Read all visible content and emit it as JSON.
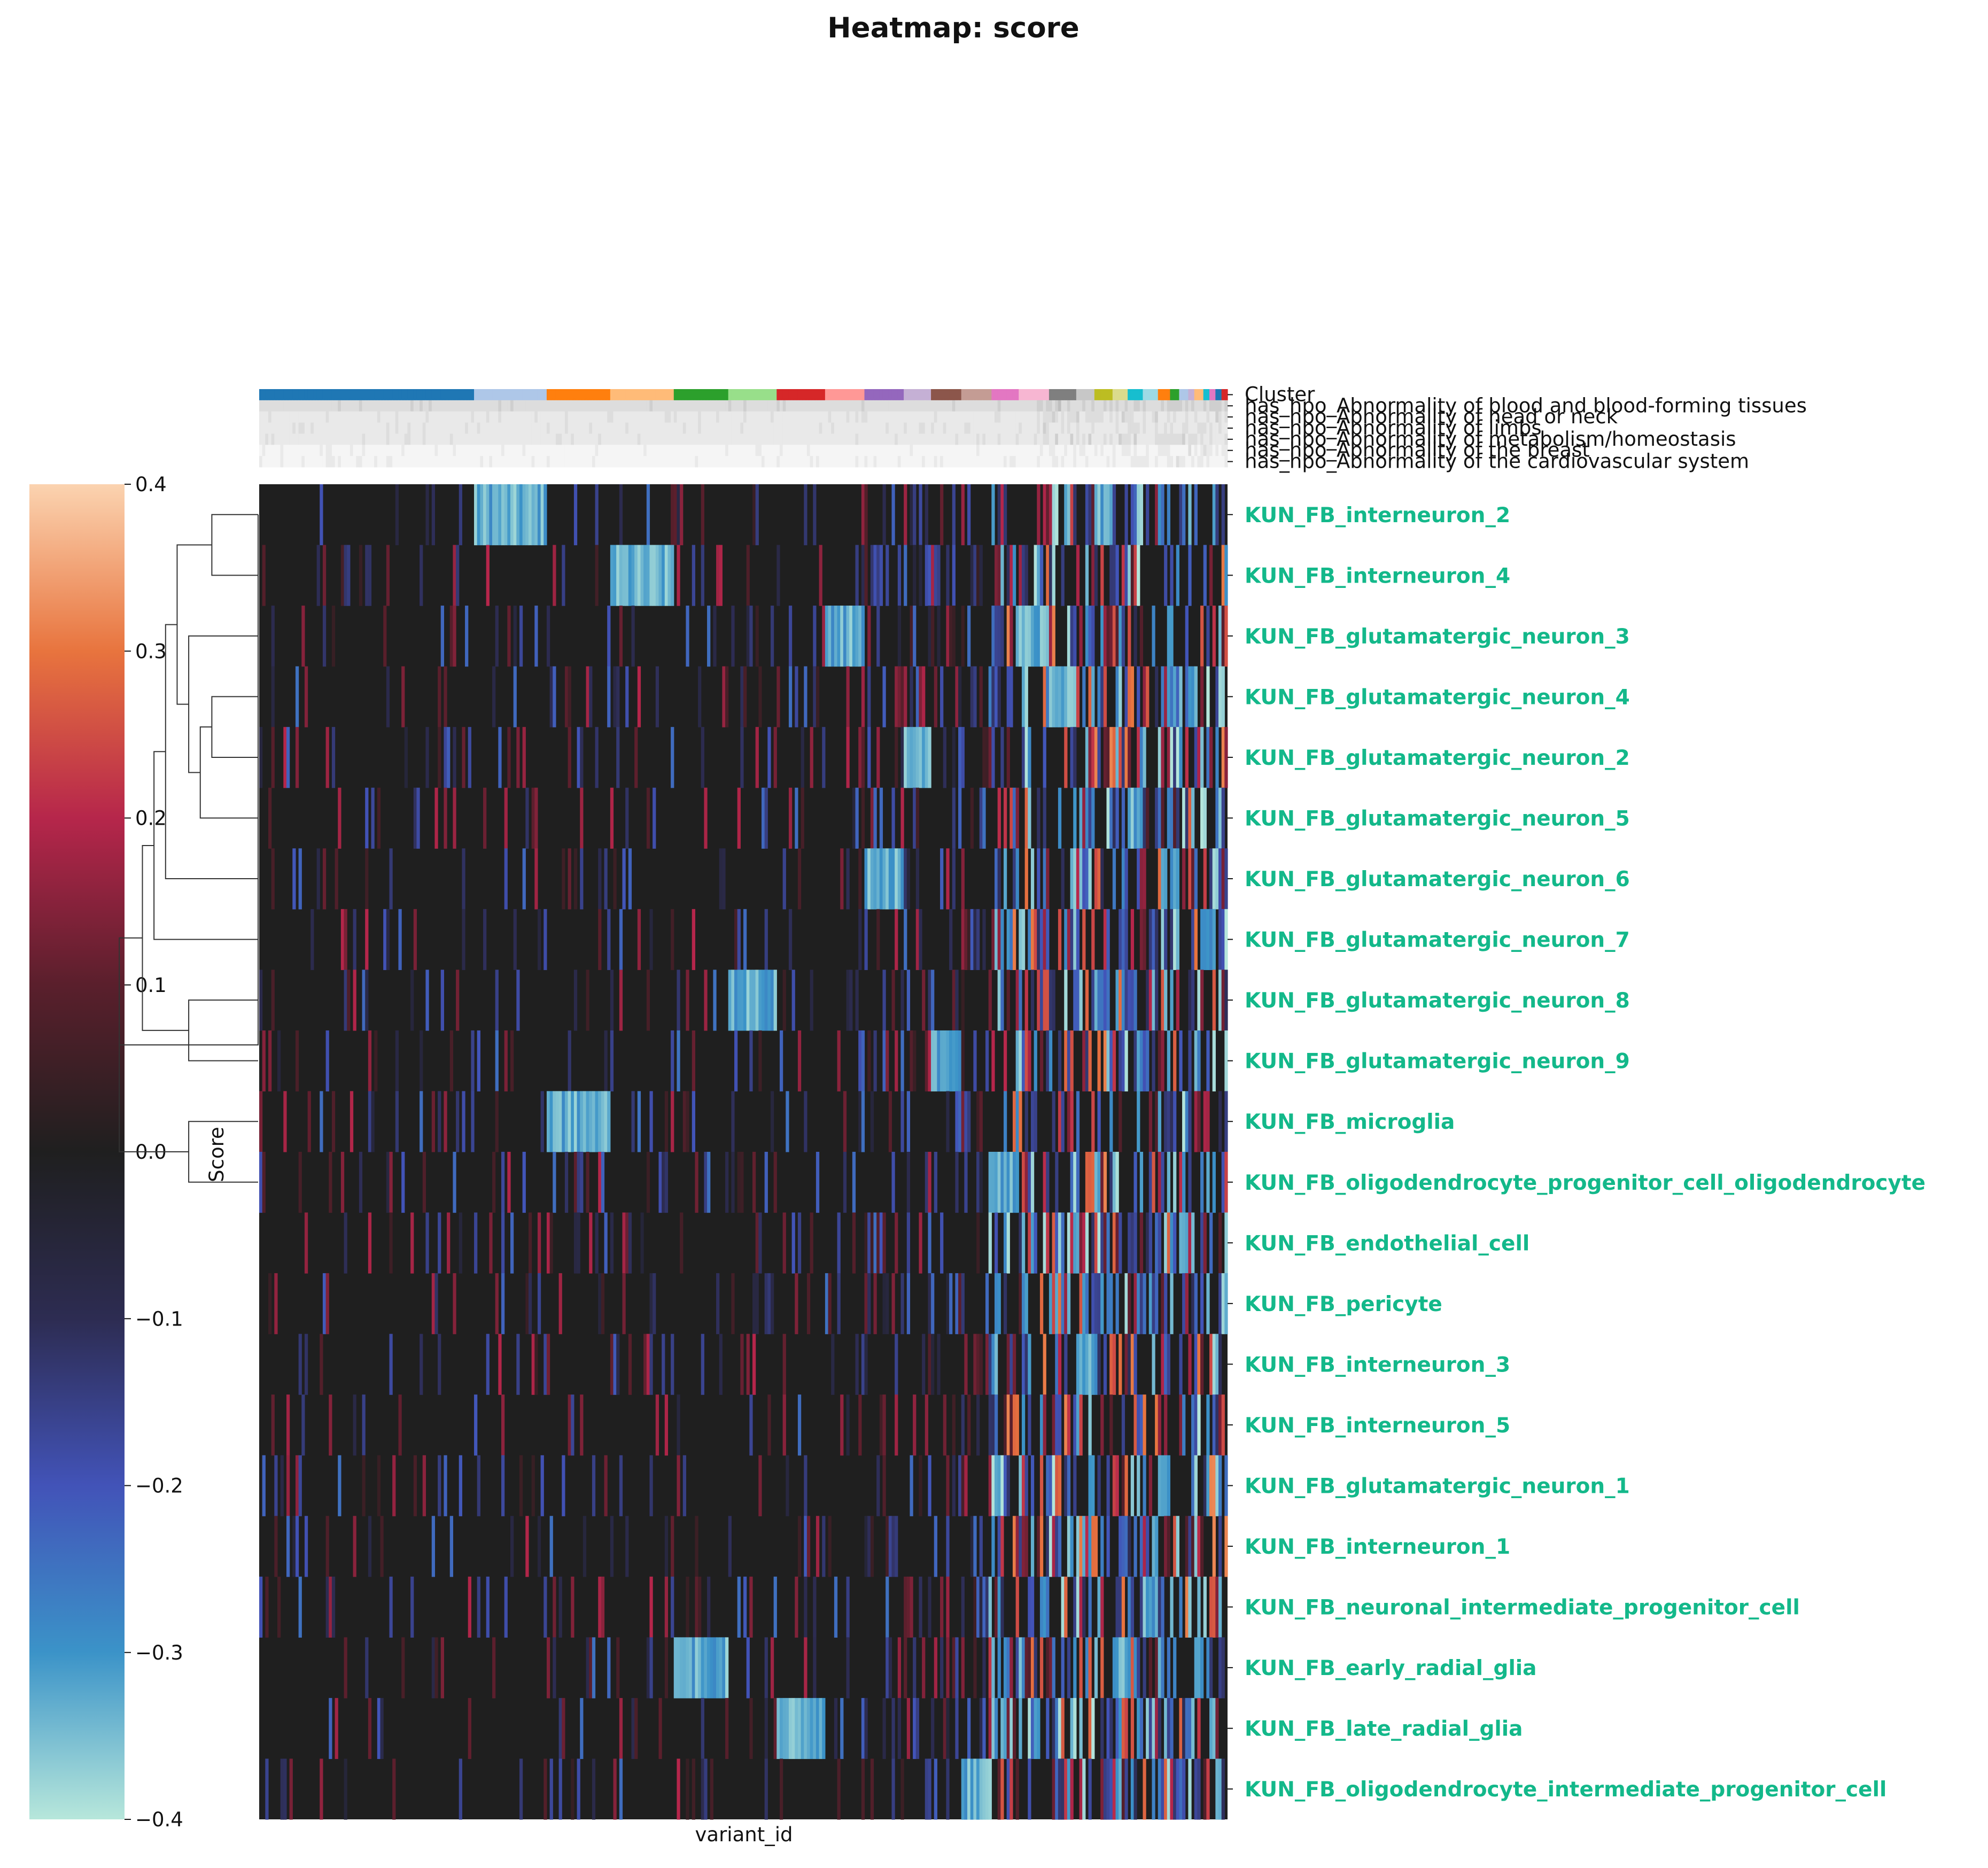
{
  "chart_data": {
    "type": "heatmap",
    "title": "Heatmap: score",
    "xlabel": "variant_id",
    "ylabel": "",
    "colorbar_label": "Score",
    "vlim": [
      -0.4,
      0.4
    ],
    "colorbar_ticks": [
      "0.4",
      "0.3",
      "0.2",
      "0.1",
      "0.0",
      "−0.1",
      "−0.2",
      "−0.3",
      "−0.4"
    ],
    "colorbar_tick_values": [
      0.4,
      0.3,
      0.2,
      0.1,
      0.0,
      -0.1,
      -0.2,
      -0.3,
      -0.4
    ],
    "colormap_stops": [
      {
        "v": 0.4,
        "color": "#fbd3b0"
      },
      {
        "v": 0.3,
        "color": "#e8743e"
      },
      {
        "v": 0.2,
        "color": "#b6264b"
      },
      {
        "v": 0.1,
        "color": "#5a1f2c"
      },
      {
        "v": 0.0,
        "color": "#1f1f1f"
      },
      {
        "v": -0.1,
        "color": "#2d2c52"
      },
      {
        "v": -0.2,
        "color": "#4253b8"
      },
      {
        "v": -0.3,
        "color": "#3b93c8"
      },
      {
        "v": -0.4,
        "color": "#b7e7db"
      }
    ],
    "label_color": "#13b88a",
    "rows": [
      "KUN_FB_interneuron_2",
      "KUN_FB_interneuron_4",
      "KUN_FB_glutamatergic_neuron_3",
      "KUN_FB_glutamatergic_neuron_4",
      "KUN_FB_glutamatergic_neuron_2",
      "KUN_FB_glutamatergic_neuron_5",
      "KUN_FB_glutamatergic_neuron_6",
      "KUN_FB_glutamatergic_neuron_7",
      "KUN_FB_glutamatergic_neuron_8",
      "KUN_FB_glutamatergic_neuron_9",
      "KUN_FB_microglia",
      "KUN_FB_oligodendrocyte_progenitor_cell_oligodendrocyte",
      "KUN_FB_endothelial_cell",
      "KUN_FB_pericyte",
      "KUN_FB_interneuron_3",
      "KUN_FB_interneuron_5",
      "KUN_FB_glutamatergic_neuron_1",
      "KUN_FB_interneuron_1",
      "KUN_FB_neuronal_intermediate_progenitor_cell",
      "KUN_FB_early_radial_glia",
      "KUN_FB_late_radial_glia",
      "KUN_FB_oligodendrocyte_intermediate_progenitor_cell"
    ],
    "annotation_rows": [
      "Cluster",
      "has_hpo_Abnormality of blood and blood-forming tissues",
      "has_hpo_Abnormality of head or neck",
      "has_hpo_Abnormality of limbs",
      "has_hpo_Abnormality of metabolism/homeostasis",
      "has_hpo_Abnormality of the breast",
      "has_hpo_Abnormality of the cardiovascular system"
    ],
    "clusters": [
      {
        "fraction": 0.218,
        "color": "#1f77b4",
        "block_row": -1
      },
      {
        "fraction": 0.075,
        "color": "#aec7e8",
        "block_row": 0
      },
      {
        "fraction": 0.066,
        "color": "#ff7f0e",
        "block_row": 10
      },
      {
        "fraction": 0.064,
        "color": "#ffbb78",
        "block_row": 1
      },
      {
        "fraction": 0.056,
        "color": "#2ca02c",
        "block_row": 19
      },
      {
        "fraction": 0.049,
        "color": "#98df8a",
        "block_row": 8
      },
      {
        "fraction": 0.048,
        "color": "#d62728",
        "block_row": 20
      },
      {
        "fraction": 0.042,
        "color": "#ff9896",
        "block_row": 2
      },
      {
        "fraction": 0.038,
        "color": "#9467bd",
        "block_row": 6
      },
      {
        "fraction": 0.03,
        "color": "#c5b0d5",
        "block_row": 4
      },
      {
        "fraction": 0.03,
        "color": "#8c564b",
        "block_row": 9
      },
      {
        "fraction": 0.029,
        "color": "#c49c94",
        "block_row": 21
      },
      {
        "fraction": 0.03,
        "color": "#e377c2",
        "block_row": 11
      },
      {
        "fraction": 0.029,
        "color": "#f7b6d2",
        "block_row": 2
      },
      {
        "fraction": 0.028,
        "color": "#7f7f7f",
        "block_row": 3
      },
      {
        "fraction": 0.02,
        "color": "#c7c7c7",
        "block_row": 14
      },
      {
        "fraction": 0.018,
        "color": "#bcbd22",
        "block_row": 0
      },
      {
        "fraction": 0.016,
        "color": "#dbdb8d",
        "block_row": 19
      },
      {
        "fraction": 0.016,
        "color": "#17becf",
        "block_row": 5
      },
      {
        "fraction": 0.014,
        "color": "#9edae5",
        "block_row": 18
      },
      {
        "fraction": 0.011,
        "color": "#ff7f0e",
        "block_row": 16
      },
      {
        "fraction": 0.01,
        "color": "#2ca02c",
        "block_row": 6
      },
      {
        "fraction": 0.009,
        "color": "#aec7e8",
        "block_row": 12
      },
      {
        "fraction": 0.008,
        "color": "#c5b0d5",
        "block_row": 3
      },
      {
        "fraction": 0.008,
        "color": "#ffbb78",
        "block_row": 19
      },
      {
        "fraction": 0.007,
        "color": "#17becf",
        "block_row": 7
      },
      {
        "fraction": 0.007,
        "color": "#e377c2",
        "block_row": 20
      },
      {
        "fraction": 0.006,
        "color": "#1f77b4",
        "block_row": 21
      },
      {
        "fraction": 0.005,
        "color": "#d62728",
        "block_row": 13
      }
    ]
  }
}
